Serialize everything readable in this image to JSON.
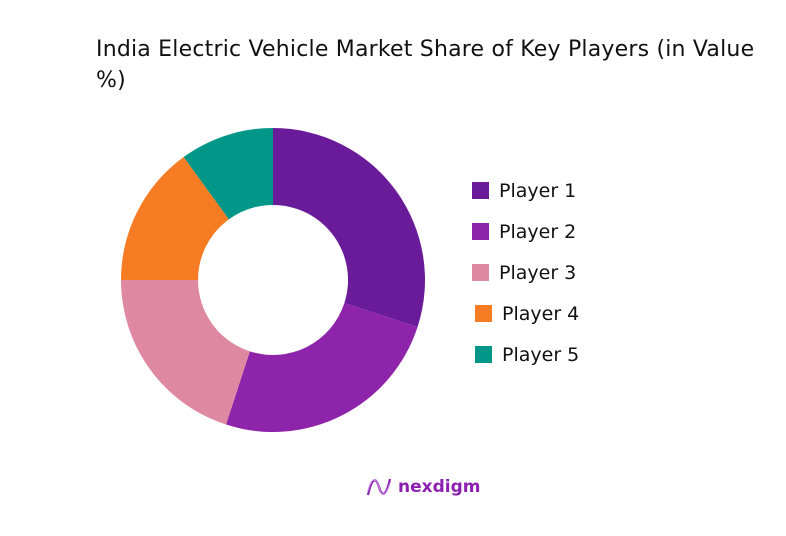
{
  "chart_data": {
    "type": "pie",
    "variant": "donut",
    "title": " India Electric Vehicle Market Share of Key Players (in Value %)",
    "categories": [
      "Player 1",
      "Player 2",
      "Player 3",
      "Player 4",
      "Player 5"
    ],
    "values": [
      30,
      25,
      20,
      15,
      10
    ],
    "colors": [
      "#6a1b9a",
      "#8e24aa",
      "#de88a2",
      "#f57c22",
      "#009688"
    ],
    "legend_position": "right"
  },
  "branding": {
    "logo_text": "nexdigm"
  }
}
